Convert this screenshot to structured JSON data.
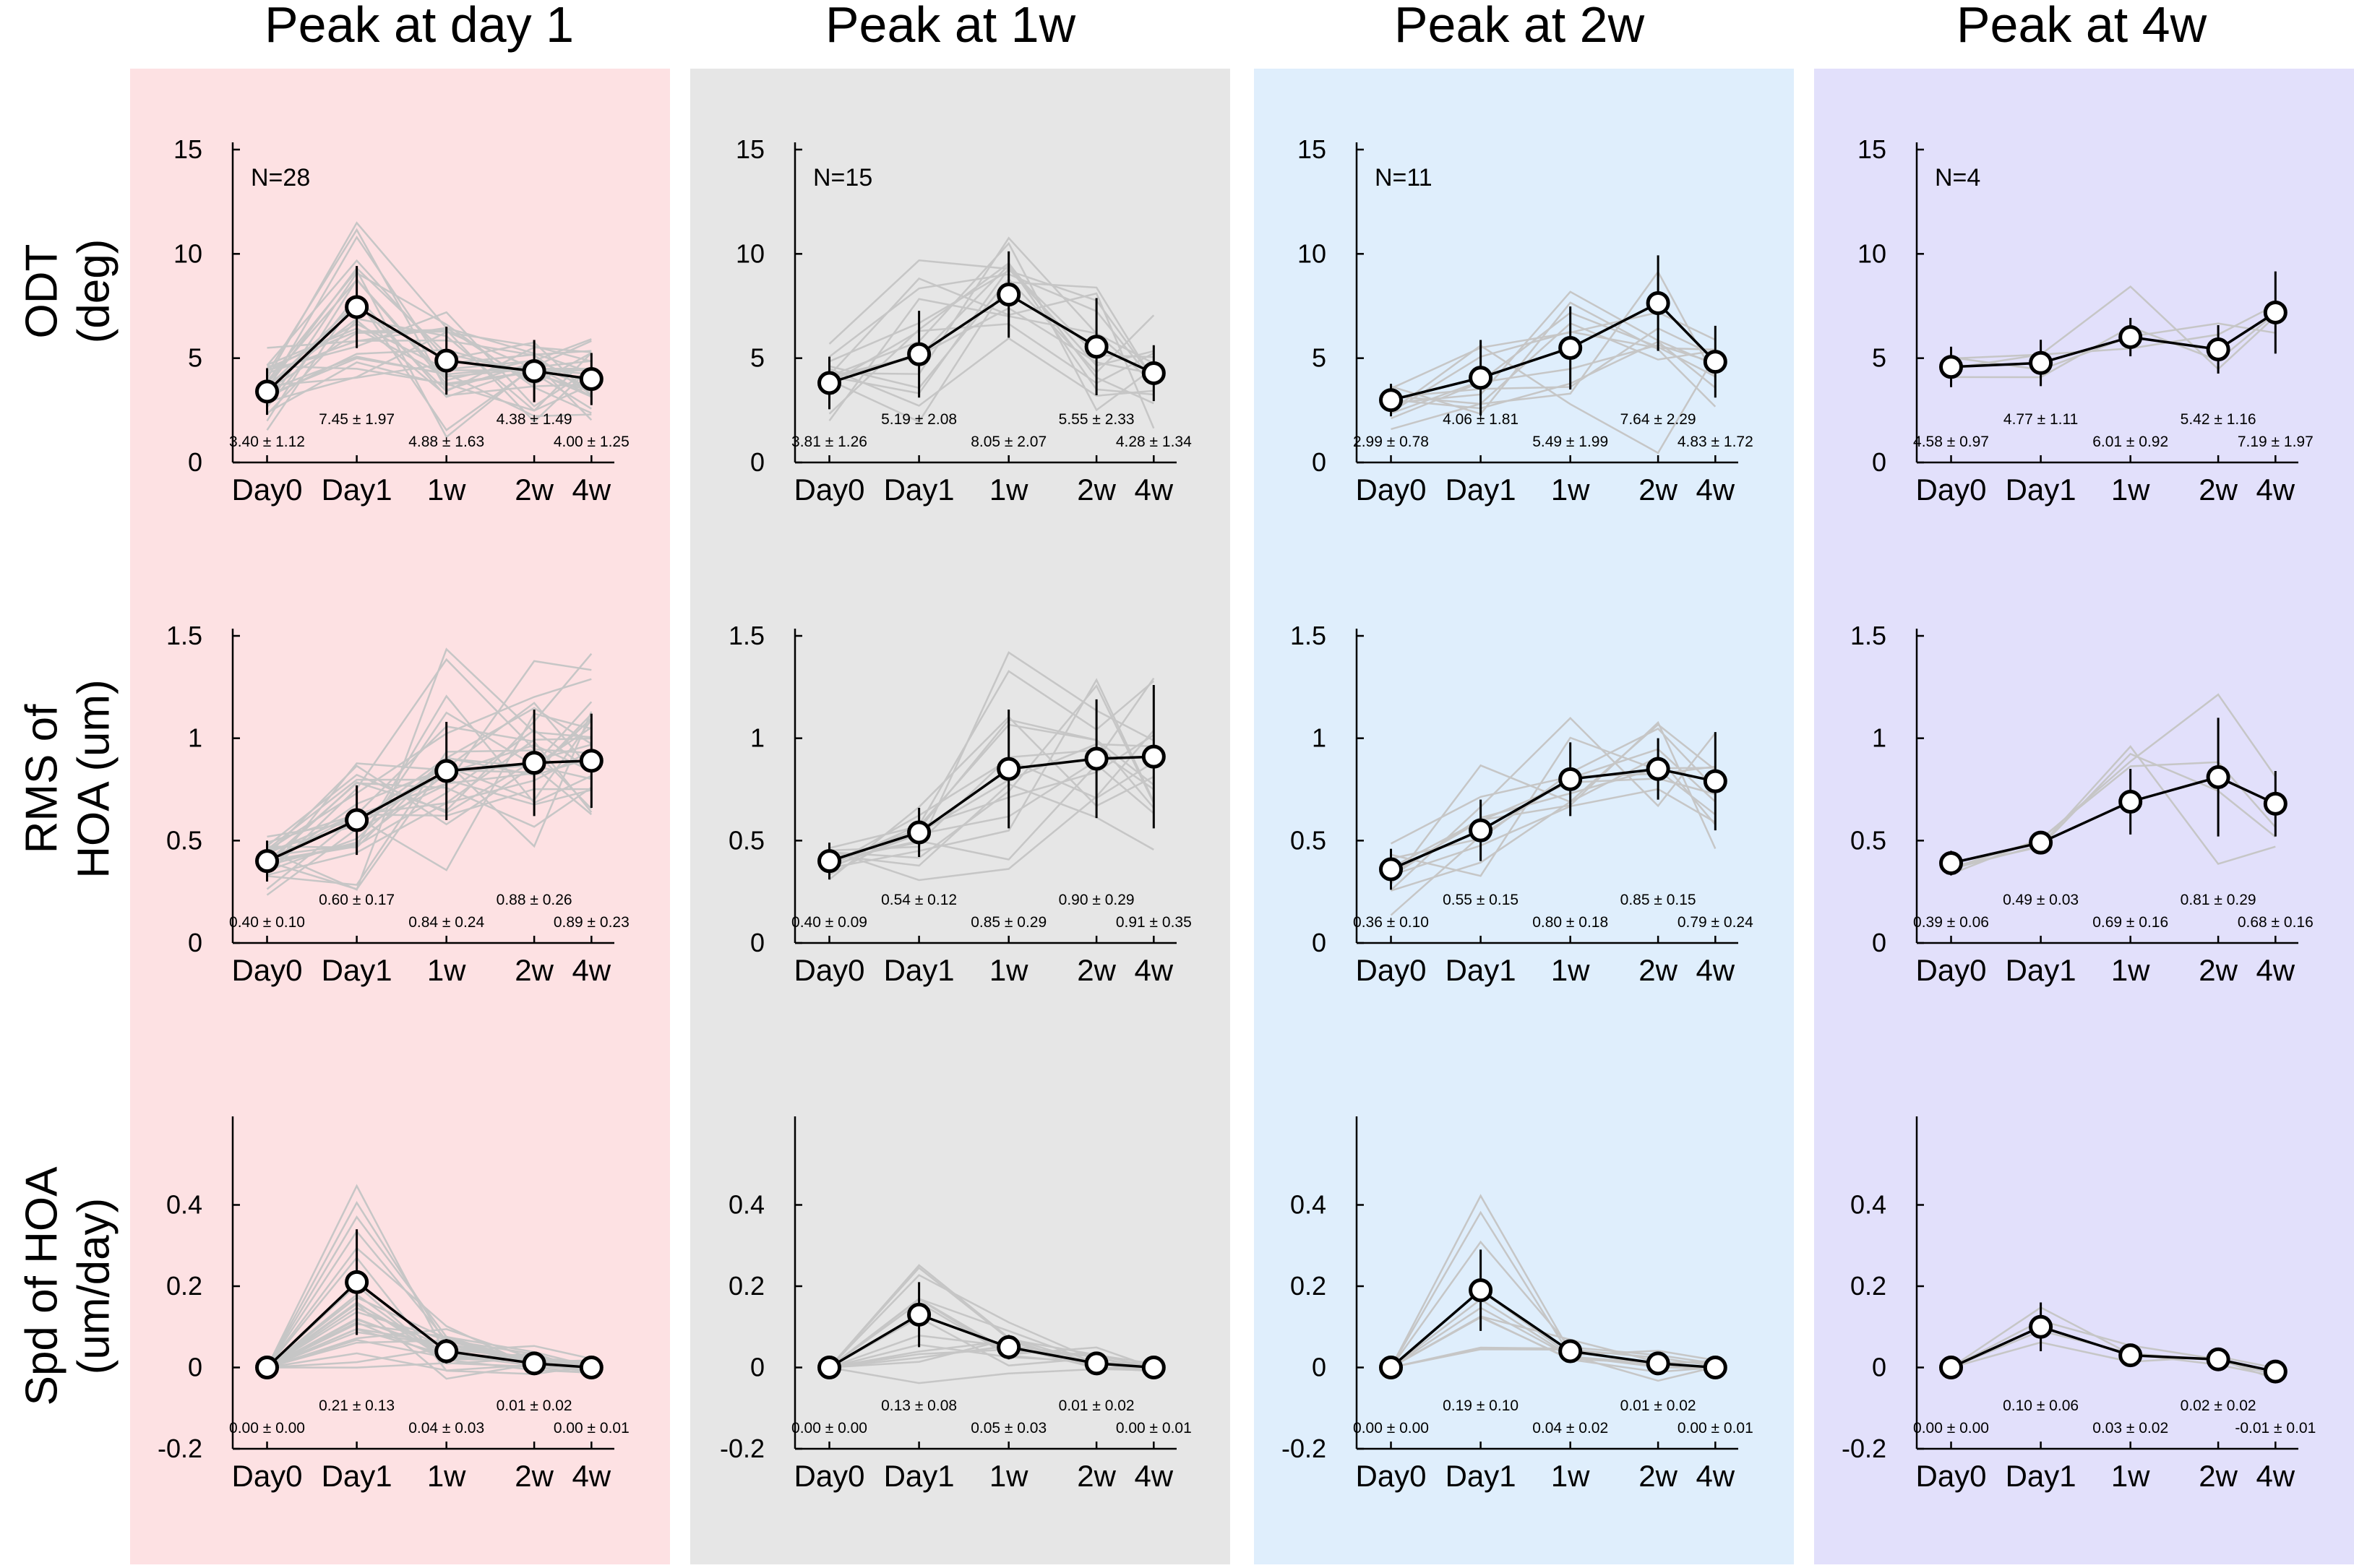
{
  "columns": [
    {
      "title": "Peak at day 1",
      "background": "#fde1e3",
      "n_label": "N=28"
    },
    {
      "title": "Peak at 1w",
      "background": "#e6e6e6",
      "n_label": "N=15"
    },
    {
      "title": "Peak at 2w",
      "background": "#dfeefc",
      "n_label": "N=11"
    },
    {
      "title": "Peak at 4w",
      "background": "#e2e0fb",
      "n_label": "N=4"
    }
  ],
  "rows": [
    {
      "label_lines": [
        "ODT",
        "(deg)"
      ]
    },
    {
      "label_lines": [
        "RMS of",
        "HOA (um)"
      ]
    },
    {
      "label_lines": [
        "Spd of HOA",
        "(um/day)"
      ]
    }
  ],
  "colors": {
    "mean_line": "#000000",
    "individual_lines": "#c6c6c6",
    "marker_fill": "#ffffff"
  },
  "chart_data": [
    {
      "type": "line",
      "col": 0,
      "row": 0,
      "categories": [
        "Day0",
        "Day1",
        "1w",
        "2w",
        "4w"
      ],
      "ylim": [
        0,
        15
      ],
      "yticks": [
        "0",
        "5",
        "10",
        "15"
      ],
      "mean": [
        3.4,
        7.45,
        4.88,
        4.38,
        4.0
      ],
      "sd": [
        1.12,
        1.97,
        1.63,
        1.49,
        1.25
      ],
      "labels": [
        "3.40 ± 1.12",
        "7.45 ± 1.97",
        "4.88 ± 1.63",
        "4.38 ± 1.49",
        "4.00 ± 1.25"
      ],
      "n_individual": 28
    },
    {
      "type": "line",
      "col": 1,
      "row": 0,
      "categories": [
        "Day0",
        "Day1",
        "1w",
        "2w",
        "4w"
      ],
      "ylim": [
        0,
        15
      ],
      "yticks": [
        "0",
        "5",
        "10",
        "15"
      ],
      "mean": [
        3.81,
        5.19,
        8.05,
        5.55,
        4.28
      ],
      "sd": [
        1.26,
        2.08,
        2.07,
        2.33,
        1.34
      ],
      "labels": [
        "3.81 ± 1.26",
        "5.19 ± 2.08",
        "8.05 ± 2.07",
        "5.55 ± 2.33",
        "4.28 ± 1.34"
      ],
      "n_individual": 15
    },
    {
      "type": "line",
      "col": 2,
      "row": 0,
      "categories": [
        "Day0",
        "Day1",
        "1w",
        "2w",
        "4w"
      ],
      "ylim": [
        0,
        15
      ],
      "yticks": [
        "0",
        "5",
        "10",
        "15"
      ],
      "mean": [
        2.99,
        4.06,
        5.49,
        7.64,
        4.83
      ],
      "sd": [
        0.78,
        1.81,
        1.99,
        2.29,
        1.72
      ],
      "labels": [
        "2.99 ± 0.78",
        "4.06 ± 1.81",
        "5.49 ± 1.99",
        "7.64 ± 2.29",
        "4.83 ± 1.72"
      ],
      "n_individual": 11
    },
    {
      "type": "line",
      "col": 3,
      "row": 0,
      "categories": [
        "Day0",
        "Day1",
        "1w",
        "2w",
        "4w"
      ],
      "ylim": [
        0,
        15
      ],
      "yticks": [
        "0",
        "5",
        "10",
        "15"
      ],
      "mean": [
        4.58,
        4.77,
        6.01,
        5.42,
        7.19
      ],
      "sd": [
        0.97,
        1.11,
        0.92,
        1.16,
        1.97
      ],
      "labels": [
        "4.58 ± 0.97",
        "4.77 ± 1.11",
        "6.01 ± 0.92",
        "5.42 ± 1.16",
        "7.19 ± 1.97"
      ],
      "n_individual": 4
    },
    {
      "type": "line",
      "col": 0,
      "row": 1,
      "categories": [
        "Day0",
        "Day1",
        "1w",
        "2w",
        "4w"
      ],
      "ylim": [
        0,
        1.5
      ],
      "yticks": [
        "0",
        "0.5",
        "1",
        "1.5"
      ],
      "mean": [
        0.4,
        0.6,
        0.84,
        0.88,
        0.89
      ],
      "sd": [
        0.1,
        0.17,
        0.24,
        0.26,
        0.23
      ],
      "labels": [
        "0.40 ± 0.10",
        "0.60 ± 0.17",
        "0.84 ± 0.24",
        "0.88 ± 0.26",
        "0.89 ± 0.23"
      ],
      "n_individual": 28
    },
    {
      "type": "line",
      "col": 1,
      "row": 1,
      "categories": [
        "Day0",
        "Day1",
        "1w",
        "2w",
        "4w"
      ],
      "ylim": [
        0,
        1.5
      ],
      "yticks": [
        "0",
        "0.5",
        "1",
        "1.5"
      ],
      "mean": [
        0.4,
        0.54,
        0.85,
        0.9,
        0.91
      ],
      "sd": [
        0.09,
        0.12,
        0.29,
        0.29,
        0.35
      ],
      "labels": [
        "0.40 ± 0.09",
        "0.54 ± 0.12",
        "0.85 ± 0.29",
        "0.90 ± 0.29",
        "0.91 ± 0.35"
      ],
      "n_individual": 15
    },
    {
      "type": "line",
      "col": 2,
      "row": 1,
      "categories": [
        "Day0",
        "Day1",
        "1w",
        "2w",
        "4w"
      ],
      "ylim": [
        0,
        1.5
      ],
      "yticks": [
        "0",
        "0.5",
        "1",
        "1.5"
      ],
      "mean": [
        0.36,
        0.55,
        0.8,
        0.85,
        0.79
      ],
      "sd": [
        0.1,
        0.15,
        0.18,
        0.15,
        0.24
      ],
      "labels": [
        "0.36 ± 0.10",
        "0.55 ± 0.15",
        "0.80 ± 0.18",
        "0.85 ± 0.15",
        "0.79 ± 0.24"
      ],
      "n_individual": 11
    },
    {
      "type": "line",
      "col": 3,
      "row": 1,
      "categories": [
        "Day0",
        "Day1",
        "1w",
        "2w",
        "4w"
      ],
      "ylim": [
        0,
        1.5
      ],
      "yticks": [
        "0",
        "0.5",
        "1",
        "1.5"
      ],
      "mean": [
        0.39,
        0.49,
        0.69,
        0.81,
        0.68
      ],
      "sd": [
        0.06,
        0.03,
        0.16,
        0.29,
        0.16
      ],
      "labels": [
        "0.39 ± 0.06",
        "0.49 ± 0.03",
        "0.69 ± 0.16",
        "0.81 ± 0.29",
        "0.68 ± 0.16"
      ],
      "n_individual": 4
    },
    {
      "type": "line",
      "col": 0,
      "row": 2,
      "categories": [
        "Day0",
        "Day1",
        "1w",
        "2w",
        "4w"
      ],
      "ylim": [
        -0.2,
        0.6
      ],
      "yticks": [
        "-0.2",
        "0",
        "0.2",
        "0.4"
      ],
      "mean": [
        0.0,
        0.21,
        0.04,
        0.01,
        0.0
      ],
      "sd": [
        0.0,
        0.13,
        0.03,
        0.02,
        0.01
      ],
      "labels": [
        "0.00 ± 0.00",
        "0.21 ± 0.13",
        "0.04 ± 0.03",
        "0.01 ± 0.02",
        "0.00 ± 0.01"
      ],
      "n_individual": 28
    },
    {
      "type": "line",
      "col": 1,
      "row": 2,
      "categories": [
        "Day0",
        "Day1",
        "1w",
        "2w",
        "4w"
      ],
      "ylim": [
        -0.2,
        0.6
      ],
      "yticks": [
        "-0.2",
        "0",
        "0.2",
        "0.4"
      ],
      "mean": [
        0.0,
        0.13,
        0.05,
        0.01,
        0.0
      ],
      "sd": [
        0.0,
        0.08,
        0.03,
        0.02,
        0.01
      ],
      "labels": [
        "0.00 ± 0.00",
        "0.13 ± 0.08",
        "0.05 ± 0.03",
        "0.01 ± 0.02",
        "0.00 ± 0.01"
      ],
      "n_individual": 15
    },
    {
      "type": "line",
      "col": 2,
      "row": 2,
      "categories": [
        "Day0",
        "Day1",
        "1w",
        "2w",
        "4w"
      ],
      "ylim": [
        -0.2,
        0.6
      ],
      "yticks": [
        "-0.2",
        "0",
        "0.2",
        "0.4"
      ],
      "mean": [
        0.0,
        0.19,
        0.04,
        0.01,
        0.0
      ],
      "sd": [
        0.0,
        0.1,
        0.02,
        0.02,
        0.01
      ],
      "labels": [
        "0.00 ± 0.00",
        "0.19 ± 0.10",
        "0.04 ± 0.02",
        "0.01 ± 0.02",
        "0.00 ± 0.01"
      ],
      "n_individual": 11
    },
    {
      "type": "line",
      "col": 3,
      "row": 2,
      "categories": [
        "Day0",
        "Day1",
        "1w",
        "2w",
        "4w"
      ],
      "ylim": [
        -0.2,
        0.6
      ],
      "yticks": [
        "-0.2",
        "0",
        "0.2",
        "0.4"
      ],
      "mean": [
        0.0,
        0.1,
        0.03,
        0.02,
        -0.01
      ],
      "sd": [
        0.0,
        0.06,
        0.02,
        0.02,
        0.01
      ],
      "labels": [
        "0.00 ± 0.00",
        "0.10 ± 0.06",
        "0.03 ± 0.02",
        "0.02 ± 0.02",
        "-0.01 ± 0.01"
      ],
      "n_individual": 4
    }
  ]
}
